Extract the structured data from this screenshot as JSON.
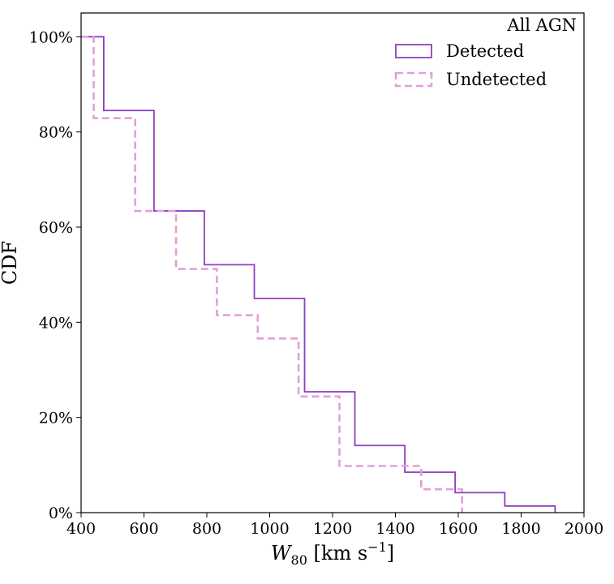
{
  "chart_data": {
    "type": "line",
    "step": "post",
    "title": "",
    "legend_title": "All AGN",
    "legend_position": "top-right",
    "xlabel": "W80 [km s−1]",
    "xlabel_parts": {
      "symbol": "W",
      "subscript": "80",
      "unit_open": " [km s",
      "superscript": "−1",
      "unit_close": "]"
    },
    "ylabel": "CDF",
    "xlim": [
      400,
      2000
    ],
    "ylim": [
      0,
      105
    ],
    "xticks": [
      400,
      600,
      800,
      1000,
      1200,
      1400,
      1600,
      1800,
      2000
    ],
    "yticks": [
      0,
      20,
      40,
      60,
      80,
      100
    ],
    "ytick_labels": [
      "0%",
      "20%",
      "40%",
      "60%",
      "80%",
      "100%"
    ],
    "grid": false,
    "series": [
      {
        "name": "Detected",
        "color": "#8e3fbf",
        "dash": "solid",
        "points": [
          [
            400,
            100
          ],
          [
            472,
            100
          ],
          [
            472,
            84.5
          ],
          [
            632,
            84.5
          ],
          [
            632,
            63.4
          ],
          [
            792,
            63.4
          ],
          [
            792,
            52.1
          ],
          [
            951,
            52.1
          ],
          [
            951,
            45.0
          ],
          [
            1111,
            45.0
          ],
          [
            1111,
            25.4
          ],
          [
            1271,
            25.4
          ],
          [
            1271,
            14.1
          ],
          [
            1430,
            14.1
          ],
          [
            1430,
            8.5
          ],
          [
            1590,
            8.5
          ],
          [
            1590,
            4.2
          ],
          [
            1748,
            4.2
          ],
          [
            1748,
            1.4
          ],
          [
            1908,
            1.4
          ],
          [
            1908,
            0
          ]
        ]
      },
      {
        "name": "Undetected",
        "color": "#e0a0d8",
        "dash": "dashed",
        "points": [
          [
            400,
            100
          ],
          [
            440,
            100
          ],
          [
            440,
            82.9
          ],
          [
            572,
            82.9
          ],
          [
            572,
            63.4
          ],
          [
            702,
            63.4
          ],
          [
            702,
            51.2
          ],
          [
            832,
            51.2
          ],
          [
            832,
            41.5
          ],
          [
            962,
            41.5
          ],
          [
            962,
            36.6
          ],
          [
            1092,
            36.6
          ],
          [
            1092,
            24.4
          ],
          [
            1222,
            24.4
          ],
          [
            1222,
            9.8
          ],
          [
            1482,
            9.8
          ],
          [
            1482,
            4.9
          ],
          [
            1612,
            4.9
          ],
          [
            1612,
            0
          ]
        ]
      }
    ]
  }
}
